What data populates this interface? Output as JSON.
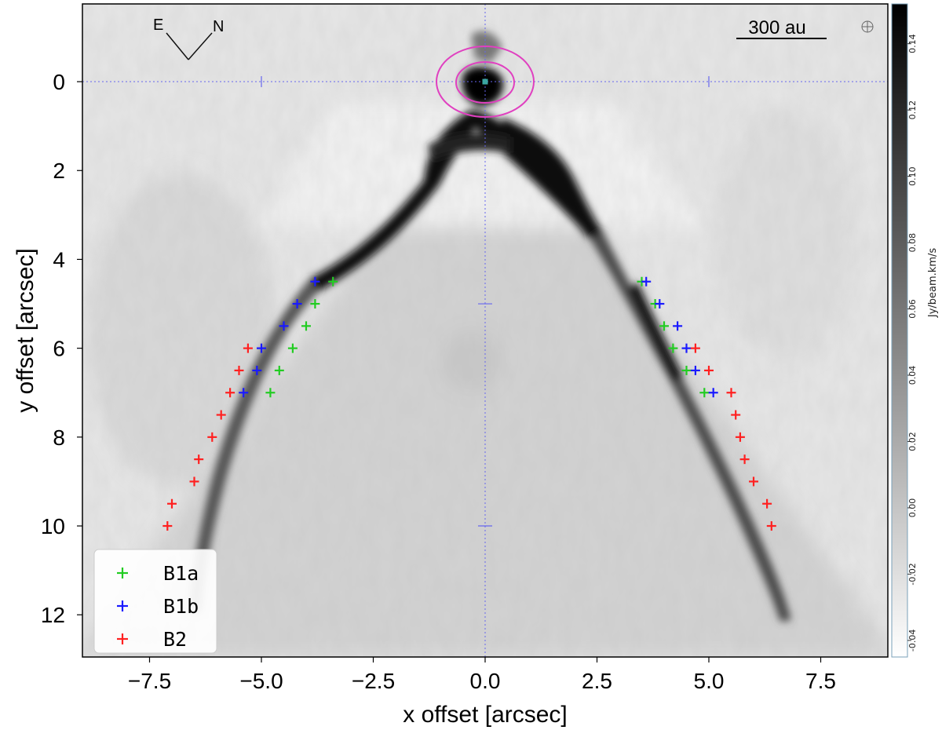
{
  "chart_data": {
    "type": "scatter",
    "xlabel": "x offset [arcsec]",
    "ylabel": "y offset [arcsec]",
    "xlim": [
      -9.0,
      9.0
    ],
    "ylim": [
      -1.75,
      12.95
    ],
    "y_inverted": true,
    "x_ticks": [
      -7.5,
      -5.0,
      -2.5,
      0.0,
      2.5,
      5.0,
      7.5
    ],
    "x_tick_labels": [
      "−7.5",
      "−5.0",
      "−2.5",
      "0.0",
      "2.5",
      "5.0",
      "7.5"
    ],
    "y_ticks": [
      0,
      2,
      4,
      6,
      8,
      10,
      12
    ],
    "y_tick_labels": [
      "0",
      "2",
      "4",
      "6",
      "8",
      "10",
      "12"
    ],
    "background": "grayscale intensity map with inverted V-shaped dark cavity walls",
    "colorbar": {
      "label": "Jy/beam.km/s",
      "range": [
        -0.045,
        0.152
      ],
      "ticks": [
        -0.04,
        -0.02,
        0.0,
        0.02,
        0.04,
        0.06,
        0.08,
        0.1,
        0.12,
        0.14
      ],
      "tick_labels": [
        "-0.04",
        "-0.02",
        "0.00",
        "0.02",
        "0.04",
        "0.06",
        "0.08",
        "0.10",
        "0.12",
        "0.14"
      ],
      "colors": [
        "#ffffff",
        "#000000"
      ]
    },
    "legend_position": "lower-left",
    "series": [
      {
        "name": "B1a",
        "marker": "+",
        "color": "#22cc22",
        "points": [
          [
            -3.4,
            4.5
          ],
          [
            -3.8,
            5.0
          ],
          [
            -4.0,
            5.5
          ],
          [
            -4.3,
            6.0
          ],
          [
            -4.6,
            6.5
          ],
          [
            -4.8,
            7.0
          ],
          [
            3.5,
            4.5
          ],
          [
            3.8,
            5.0
          ],
          [
            4.0,
            5.5
          ],
          [
            4.2,
            6.0
          ],
          [
            4.5,
            6.5
          ],
          [
            4.9,
            7.0
          ]
        ]
      },
      {
        "name": "B1b",
        "marker": "+",
        "color": "#1a1aff",
        "points": [
          [
            -3.8,
            4.5
          ],
          [
            -4.2,
            5.0
          ],
          [
            -4.5,
            5.5
          ],
          [
            -5.0,
            6.0
          ],
          [
            -5.1,
            6.5
          ],
          [
            -5.4,
            7.0
          ],
          [
            3.6,
            4.5
          ],
          [
            3.9,
            5.0
          ],
          [
            4.3,
            5.5
          ],
          [
            4.5,
            6.0
          ],
          [
            4.7,
            6.5
          ],
          [
            5.1,
            7.0
          ]
        ]
      },
      {
        "name": "B2",
        "marker": "+",
        "color": "#ff2020",
        "points": [
          [
            -5.3,
            6.0
          ],
          [
            -5.5,
            6.5
          ],
          [
            -5.7,
            7.0
          ],
          [
            -5.9,
            7.5
          ],
          [
            -6.1,
            8.0
          ],
          [
            -6.4,
            8.5
          ],
          [
            -6.5,
            9.0
          ],
          [
            -7.0,
            9.5
          ],
          [
            -7.1,
            10.0
          ],
          [
            4.7,
            6.0
          ],
          [
            5.0,
            6.5
          ],
          [
            5.5,
            7.0
          ],
          [
            5.6,
            7.5
          ],
          [
            5.7,
            8.0
          ],
          [
            5.8,
            8.5
          ],
          [
            6.0,
            9.0
          ],
          [
            6.3,
            9.5
          ],
          [
            6.4,
            10.0
          ]
        ]
      }
    ],
    "annotations": {
      "scale_bar_label": "300 au",
      "compass_east": "E",
      "compass_north": "N",
      "source_marker": [
        0.0,
        0.0
      ],
      "ellipse_color": "#e040c0",
      "guide_line_color": "#6666ee"
    }
  }
}
